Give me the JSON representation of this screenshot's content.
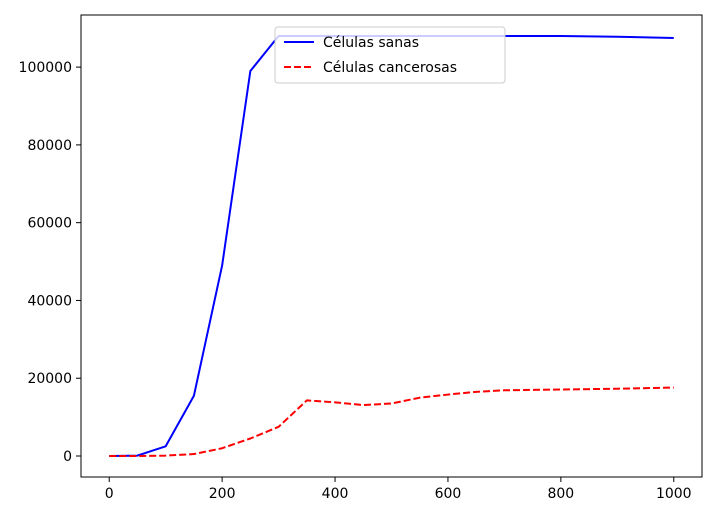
{
  "chart_data": {
    "type": "line",
    "title": "",
    "xlabel": "",
    "ylabel": "",
    "xlim": [
      -50,
      1050
    ],
    "ylim": [
      -5400,
      113400
    ],
    "xticks": [
      0,
      200,
      400,
      600,
      800,
      1000
    ],
    "yticks": [
      0,
      20000,
      40000,
      60000,
      80000,
      100000
    ],
    "grid": false,
    "legend_position": "top-center",
    "series": [
      {
        "name": "Células sanas",
        "color": "#0000ff",
        "style": "solid",
        "points": [
          [
            0,
            0
          ],
          [
            50,
            100
          ],
          [
            100,
            2500
          ],
          [
            150,
            15500
          ],
          [
            200,
            49000
          ],
          [
            250,
            99000
          ],
          [
            300,
            108000
          ],
          [
            350,
            108000
          ],
          [
            400,
            108000
          ],
          [
            500,
            108000
          ],
          [
            600,
            108000
          ],
          [
            700,
            108000
          ],
          [
            800,
            108000
          ],
          [
            900,
            107800
          ],
          [
            1000,
            107500
          ]
        ]
      },
      {
        "name": "Células cancerosas",
        "color": "#ff0000",
        "style": "dashed",
        "points": [
          [
            0,
            0
          ],
          [
            50,
            0
          ],
          [
            100,
            100
          ],
          [
            150,
            500
          ],
          [
            200,
            2000
          ],
          [
            250,
            4500
          ],
          [
            300,
            7500
          ],
          [
            350,
            14300
          ],
          [
            400,
            13800
          ],
          [
            450,
            13100
          ],
          [
            500,
            13500
          ],
          [
            550,
            15000
          ],
          [
            600,
            15800
          ],
          [
            650,
            16500
          ],
          [
            700,
            16900
          ],
          [
            800,
            17100
          ],
          [
            900,
            17300
          ],
          [
            1000,
            17600
          ]
        ]
      }
    ]
  }
}
